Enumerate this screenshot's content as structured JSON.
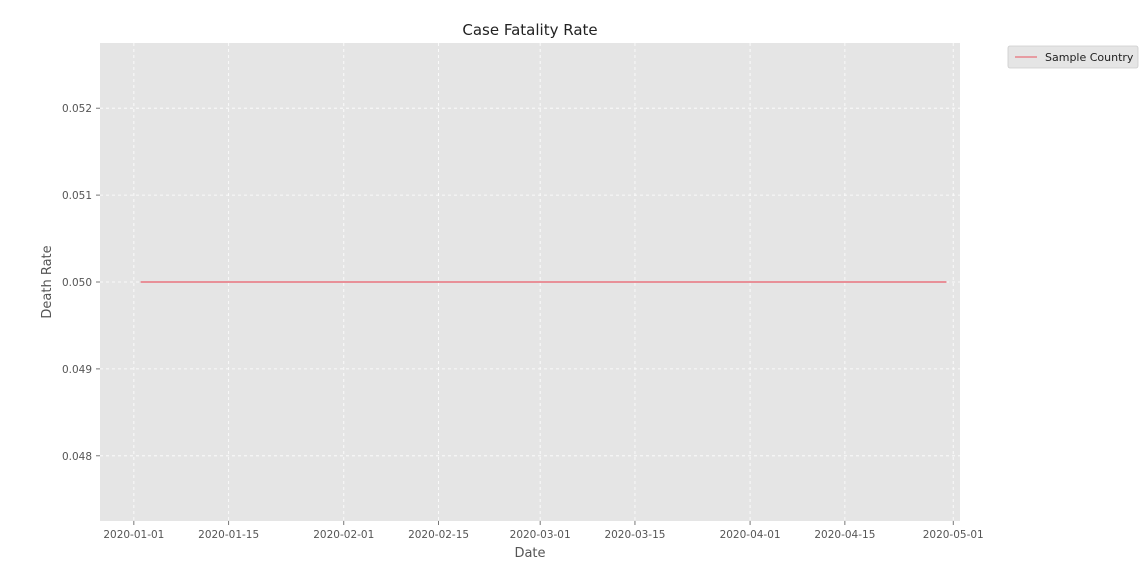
{
  "chart_data": {
    "type": "line",
    "title": "Case Fatality Rate",
    "xlabel": "Date",
    "ylabel": "Death Rate",
    "x_ticks": [
      "2020-01-01",
      "2020-01-15",
      "2020-02-01",
      "2020-02-15",
      "2020-03-01",
      "2020-03-15",
      "2020-04-01",
      "2020-04-15",
      "2020-05-01"
    ],
    "y_ticks": [
      "0.048",
      "0.049",
      "0.050",
      "0.051",
      "0.052"
    ],
    "xlim": [
      "2019-12-27",
      "2020-05-02"
    ],
    "ylim": [
      0.04725,
      0.05275
    ],
    "grid": true,
    "legend_position": "outside top-right",
    "series": [
      {
        "name": "Sample Country",
        "color": "#e8838c",
        "x": [
          "2020-01-02",
          "2020-04-30"
        ],
        "y": [
          0.05,
          0.05
        ]
      }
    ]
  },
  "colors": {
    "plot_background": "#e5e5e5",
    "grid": "#ffffff",
    "text": "#555555"
  }
}
